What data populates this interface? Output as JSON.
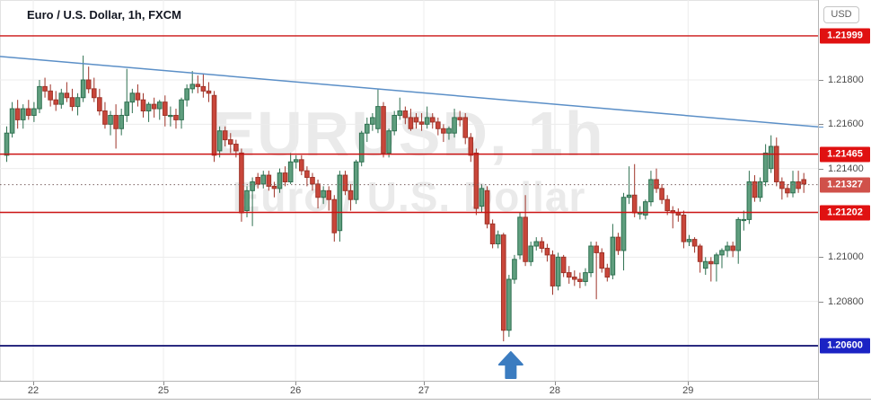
{
  "header": {
    "symbol_title": "Euro / U.S. Dollar, 1h, FXCM"
  },
  "watermark": {
    "line1": "EURUSD, 1h",
    "line2": "Euro / U.S. Dollar"
  },
  "price_axis": {
    "currency_button": "USD",
    "plain_labels": [
      {
        "text": "1.21800",
        "price": 1.218
      },
      {
        "text": "1.21600",
        "price": 1.216
      },
      {
        "text": "1.21400",
        "price": 1.214
      },
      {
        "text": "1.21000",
        "price": 1.21
      },
      {
        "text": "1.20800",
        "price": 1.208
      }
    ],
    "badges": [
      {
        "text": "1.21999",
        "price": 1.21999,
        "bg": "#e01111"
      },
      {
        "text": "1.21465",
        "price": 1.21465,
        "bg": "#e01111"
      },
      {
        "text": "1.21327",
        "price": 1.21327,
        "bg": "#d0514a"
      },
      {
        "text": "1.21202",
        "price": 1.21202,
        "bg": "#e01111"
      },
      {
        "text": "1.20600",
        "price": 1.206,
        "bg": "#1b23c4"
      }
    ]
  },
  "chart_data": {
    "type": "candlestick",
    "title": "Euro / U.S. Dollar",
    "symbol": "EURUSD",
    "timeframe": "1h",
    "exchange": "FXCM",
    "quote_currency": "USD",
    "current_price": 1.21327,
    "y_axis": {
      "visible_range": [
        1.205,
        1.2205
      ],
      "gridline_prices": [
        1.218,
        1.216,
        1.214,
        1.212,
        1.21,
        1.208,
        1.206
      ]
    },
    "x_axis": {
      "ticks": [
        {
          "label": "22",
          "index": 4.85
        },
        {
          "label": "25",
          "index": 28.7
        },
        {
          "label": "26",
          "index": 52.9
        },
        {
          "label": "27",
          "index": 76.4
        },
        {
          "label": "28",
          "index": 100.4
        },
        {
          "label": "29",
          "index": 124.8
        }
      ]
    },
    "levels": [
      {
        "price": 1.21999,
        "color": "#cc1414",
        "width": 1.4,
        "style": "solid",
        "role": "resistance"
      },
      {
        "price": 1.21465,
        "color": "#cc1414",
        "width": 1.4,
        "style": "solid",
        "role": "resistance"
      },
      {
        "price": 1.21202,
        "color": "#cc1414",
        "width": 1.4,
        "style": "solid",
        "role": "support"
      },
      {
        "price": 1.206,
        "color": "#2b2b80",
        "width": 2,
        "style": "solid",
        "role": "support"
      }
    ],
    "current_price_line": {
      "price": 1.21327,
      "color": "#7a6060",
      "style": "dotted"
    },
    "trendline": {
      "p1": 1.21906,
      "p2": 1.21588,
      "color": "#5b8fc7",
      "width": 1.5
    },
    "arrow_marker": {
      "shape": "arrow-up",
      "color": "#3b7cc0",
      "at_index": 92,
      "points_to_low": 1.2062
    },
    "style": {
      "up_fill": "#5f9e7e",
      "up_stroke": "#2e7050",
      "down_fill": "#c9463a",
      "down_stroke": "#9e3328",
      "grid": "#ececec",
      "axis_text": "#4a4a4a"
    },
    "candles_format": [
      "open",
      "high",
      "low",
      "close"
    ],
    "candles": [
      [
        1.2146,
        1.2159,
        1.2143,
        1.2156
      ],
      [
        1.2156,
        1.217,
        1.2154,
        1.2167
      ],
      [
        1.2167,
        1.2171,
        1.2158,
        1.2162
      ],
      [
        1.2162,
        1.2169,
        1.2158,
        1.2167
      ],
      [
        1.2167,
        1.2171,
        1.2162,
        1.2164
      ],
      [
        1.2164,
        1.217,
        1.2161,
        1.2167
      ],
      [
        1.2167,
        1.218,
        1.2165,
        1.2177
      ],
      [
        1.2177,
        1.2181,
        1.2172,
        1.2175
      ],
      [
        1.2175,
        1.2178,
        1.2168,
        1.2171
      ],
      [
        1.2171,
        1.2175,
        1.2166,
        1.2169
      ],
      [
        1.2169,
        1.2176,
        1.2167,
        1.2174
      ],
      [
        1.2174,
        1.2179,
        1.217,
        1.2172
      ],
      [
        1.2172,
        1.2176,
        1.2166,
        1.2168
      ],
      [
        1.2168,
        1.2174,
        1.2164,
        1.2172
      ],
      [
        1.2172,
        1.2191,
        1.217,
        1.218
      ],
      [
        1.218,
        1.2186,
        1.2174,
        1.2176
      ],
      [
        1.2176,
        1.2181,
        1.217,
        1.2172
      ],
      [
        1.2172,
        1.2176,
        1.2164,
        1.2166
      ],
      [
        1.2166,
        1.217,
        1.2158,
        1.216
      ],
      [
        1.216,
        1.2166,
        1.2155,
        1.2164
      ],
      [
        1.2164,
        1.2169,
        1.2149,
        1.2158
      ],
      [
        1.2158,
        1.2167,
        1.2155,
        1.2164
      ],
      [
        1.2164,
        1.2185,
        1.2161,
        1.217
      ],
      [
        1.217,
        1.2176,
        1.2165,
        1.2174
      ],
      [
        1.2174,
        1.2178,
        1.2168,
        1.2171
      ],
      [
        1.2171,
        1.2174,
        1.2163,
        1.2166
      ],
      [
        1.2166,
        1.217,
        1.2161,
        1.2169
      ],
      [
        1.2169,
        1.2172,
        1.2163,
        1.2167
      ],
      [
        1.2167,
        1.2171,
        1.2162,
        1.217
      ],
      [
        1.217,
        1.2173,
        1.2159,
        1.2164
      ],
      [
        1.2164,
        1.2168,
        1.2159,
        1.2164
      ],
      [
        1.2164,
        1.2167,
        1.2158,
        1.2162
      ],
      [
        1.2162,
        1.2172,
        1.2158,
        1.2171
      ],
      [
        1.2171,
        1.2178,
        1.2168,
        1.2176
      ],
      [
        1.2176,
        1.2184,
        1.2174,
        1.2178
      ],
      [
        1.2178,
        1.2182,
        1.2174,
        1.2177
      ],
      [
        1.2177,
        1.2183,
        1.2172,
        1.2175
      ],
      [
        1.2175,
        1.2179,
        1.217,
        1.2174
      ],
      [
        1.2173,
        1.2175,
        1.2143,
        1.2146
      ],
      [
        1.2148,
        1.2159,
        1.2145,
        1.2157
      ],
      [
        1.2157,
        1.2159,
        1.215,
        1.2153
      ],
      [
        1.2153,
        1.2156,
        1.2147,
        1.2151
      ],
      [
        1.2151,
        1.2153,
        1.2145,
        1.2148
      ],
      [
        1.2147,
        1.2149,
        1.2116,
        1.212
      ],
      [
        1.2121,
        1.2132,
        1.2118,
        1.213
      ],
      [
        1.213,
        1.2136,
        1.2114,
        1.2134
      ],
      [
        1.2136,
        1.2138,
        1.2131,
        1.2133
      ],
      [
        1.2133,
        1.2139,
        1.2131,
        1.2137
      ],
      [
        1.2137,
        1.2139,
        1.213,
        1.2132
      ],
      [
        1.2132,
        1.2134,
        1.2127,
        1.2131
      ],
      [
        1.2131,
        1.214,
        1.2129,
        1.2138
      ],
      [
        1.2138,
        1.2141,
        1.2132,
        1.2134
      ],
      [
        1.2134,
        1.2147,
        1.2133,
        1.2143
      ],
      [
        1.2143,
        1.2146,
        1.214,
        1.2144
      ],
      [
        1.2144,
        1.2146,
        1.2137,
        1.2139
      ],
      [
        1.2139,
        1.2141,
        1.2132,
        1.2136
      ],
      [
        1.2136,
        1.2138,
        1.213,
        1.2133
      ],
      [
        1.2133,
        1.2135,
        1.2122,
        1.2127
      ],
      [
        1.2127,
        1.2132,
        1.2124,
        1.213
      ],
      [
        1.213,
        1.2132,
        1.2121,
        1.2126
      ],
      [
        1.2126,
        1.2128,
        1.2107,
        1.2111
      ],
      [
        1.2112,
        1.2139,
        1.2107,
        1.2137
      ],
      [
        1.2137,
        1.2139,
        1.2128,
        1.213
      ],
      [
        1.213,
        1.2133,
        1.2121,
        1.2126
      ],
      [
        1.2126,
        1.2144,
        1.2124,
        1.2143
      ],
      [
        1.2143,
        1.2157,
        1.2141,
        1.2156
      ],
      [
        1.2156,
        1.2163,
        1.2152,
        1.216
      ],
      [
        1.216,
        1.2165,
        1.2157,
        1.2163
      ],
      [
        1.2158,
        1.2176,
        1.2156,
        1.2168
      ],
      [
        1.2168,
        1.217,
        1.2145,
        1.2147
      ],
      [
        1.2147,
        1.2158,
        1.2145,
        1.2157
      ],
      [
        1.2157,
        1.2166,
        1.2155,
        1.2164
      ],
      [
        1.2164,
        1.2172,
        1.2162,
        1.2166
      ],
      [
        1.2166,
        1.2168,
        1.216,
        1.2163
      ],
      [
        1.2163,
        1.2167,
        1.2157,
        1.2158
      ],
      [
        1.2163,
        1.2165,
        1.2158,
        1.2161
      ],
      [
        1.2161,
        1.2165,
        1.2157,
        1.216
      ],
      [
        1.216,
        1.2168,
        1.2158,
        1.2163
      ],
      [
        1.2163,
        1.2165,
        1.2158,
        1.2161
      ],
      [
        1.2161,
        1.2163,
        1.2155,
        1.2158
      ],
      [
        1.2158,
        1.216,
        1.2152,
        1.2156
      ],
      [
        1.2156,
        1.2159,
        1.2153,
        1.2158
      ],
      [
        1.2156,
        1.2167,
        1.2154,
        1.2163
      ],
      [
        1.2163,
        1.2166,
        1.2159,
        1.2162
      ],
      [
        1.2163,
        1.2165,
        1.2151,
        1.2154
      ],
      [
        1.2154,
        1.2156,
        1.2143,
        1.2146
      ],
      [
        1.2147,
        1.2149,
        1.2119,
        1.2122
      ],
      [
        1.2123,
        1.2133,
        1.212,
        1.2131
      ],
      [
        1.213,
        1.2132,
        1.2113,
        1.2115
      ],
      [
        1.2115,
        1.2117,
        1.2104,
        1.2106
      ],
      [
        1.2106,
        1.2112,
        1.2104,
        1.211
      ],
      [
        1.211,
        1.2111,
        1.2062,
        1.2067
      ],
      [
        1.2067,
        1.2092,
        1.2064,
        1.209
      ],
      [
        1.209,
        1.2101,
        1.2088,
        1.2099
      ],
      [
        1.2101,
        1.212,
        1.2099,
        1.2118
      ],
      [
        1.2118,
        1.2128,
        1.2096,
        1.2098
      ],
      [
        1.2098,
        1.2107,
        1.2096,
        1.2105
      ],
      [
        1.2105,
        1.2109,
        1.2103,
        1.2107
      ],
      [
        1.2107,
        1.2109,
        1.2102,
        1.2104
      ],
      [
        1.2104,
        1.2106,
        1.2098,
        1.2101
      ],
      [
        1.2101,
        1.2103,
        1.2083,
        1.2087
      ],
      [
        1.2087,
        1.2102,
        1.2085,
        1.21
      ],
      [
        1.21,
        1.2101,
        1.2091,
        1.2093
      ],
      [
        1.2093,
        1.2096,
        1.2088,
        1.2091
      ],
      [
        1.2091,
        1.2094,
        1.2087,
        1.209
      ],
      [
        1.209,
        1.2093,
        1.2086,
        1.2089
      ],
      [
        1.2089,
        1.2095,
        1.2087,
        1.2093
      ],
      [
        1.2093,
        1.2107,
        1.2091,
        1.2105
      ],
      [
        1.2105,
        1.2107,
        1.2081,
        1.2102
      ],
      [
        1.2102,
        1.2104,
        1.2093,
        1.2095
      ],
      [
        1.2095,
        1.2097,
        1.2089,
        1.2091
      ],
      [
        1.2092,
        1.2115,
        1.209,
        1.2109
      ],
      [
        1.2109,
        1.2111,
        1.2101,
        1.2103
      ],
      [
        1.2103,
        1.2129,
        1.2094,
        1.2127
      ],
      [
        1.2127,
        1.2141,
        1.2124,
        1.2128
      ],
      [
        1.2128,
        1.2142,
        1.2118,
        1.212
      ],
      [
        1.212,
        1.2123,
        1.2117,
        1.212
      ],
      [
        1.2119,
        1.2126,
        1.2117,
        1.2125
      ],
      [
        1.2125,
        1.2139,
        1.2123,
        1.2135
      ],
      [
        1.2135,
        1.214,
        1.2129,
        1.2131
      ],
      [
        1.2131,
        1.2133,
        1.2124,
        1.2126
      ],
      [
        1.2126,
        1.2128,
        1.2119,
        1.2121
      ],
      [
        1.2121,
        1.2123,
        1.2113,
        1.212
      ],
      [
        1.212,
        1.2122,
        1.2116,
        1.2119
      ],
      [
        1.2119,
        1.2121,
        1.2104,
        1.2107
      ],
      [
        1.2107,
        1.211,
        1.2105,
        1.2108
      ],
      [
        1.2108,
        1.2109,
        1.2102,
        1.2105
      ],
      [
        1.2105,
        1.2106,
        1.2093,
        1.2098
      ],
      [
        1.2095,
        1.21,
        1.2092,
        1.2098
      ],
      [
        1.2098,
        1.21,
        1.2089,
        1.2097
      ],
      [
        1.2097,
        1.2102,
        1.2089,
        1.2101
      ],
      [
        1.2101,
        1.2104,
        1.2095,
        1.2103
      ],
      [
        1.2103,
        1.2107,
        1.21,
        1.2105
      ],
      [
        1.2105,
        1.2107,
        1.21,
        1.2103
      ],
      [
        1.2103,
        1.2118,
        1.2097,
        1.2117
      ],
      [
        1.2117,
        1.2121,
        1.2112,
        1.2117
      ],
      [
        1.2117,
        1.2139,
        1.2115,
        1.2134
      ],
      [
        1.2134,
        1.2137,
        1.2125,
        1.2127
      ],
      [
        1.2127,
        1.2136,
        1.2125,
        1.2134
      ],
      [
        1.2134,
        1.2151,
        1.2132,
        1.2147
      ],
      [
        1.214,
        1.2155,
        1.2138,
        1.215
      ],
      [
        1.215,
        1.2154,
        1.2132,
        1.2134
      ],
      [
        1.2134,
        1.2136,
        1.2126,
        1.2131
      ],
      [
        1.2131,
        1.2133,
        1.2127,
        1.2129
      ],
      [
        1.2129,
        1.2139,
        1.2127,
        1.2134
      ],
      [
        1.2134,
        1.2139,
        1.2129,
        1.2131
      ],
      [
        1.2135,
        1.2138,
        1.2129,
        1.2133
      ]
    ]
  }
}
